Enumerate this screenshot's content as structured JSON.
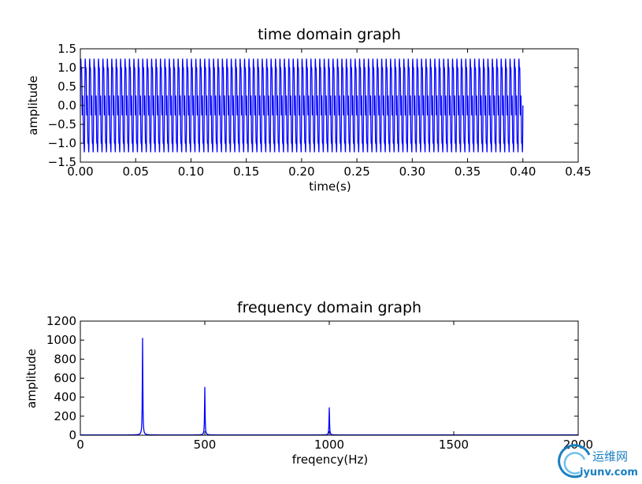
{
  "chart_data": [
    {
      "type": "line",
      "title": "time domain graph",
      "xlabel": "time(s)",
      "ylabel": "amplitude",
      "xlim": [
        0.0,
        0.45
      ],
      "ylim": [
        -1.5,
        1.5
      ],
      "xticks": [
        "0.00",
        "0.05",
        "0.10",
        "0.15",
        "0.20",
        "0.25",
        "0.30",
        "0.35",
        "0.40",
        "0.45"
      ],
      "yticks": [
        "−1.5",
        "−1.0",
        "−0.5",
        "0.0",
        "0.5",
        "1.0",
        "1.5"
      ],
      "xtick_values": [
        0.0,
        0.05,
        0.1,
        0.15,
        0.2,
        0.25,
        0.3,
        0.35,
        0.4,
        0.45
      ],
      "ytick_values": [
        -1.5,
        -1.0,
        -0.5,
        0.0,
        0.5,
        1.0,
        1.5
      ],
      "series": [
        {
          "signal": "sum of sinusoids",
          "components": [
            {
              "frequency_hz": 250,
              "amplitude": 1.0
            },
            {
              "frequency_hz": 500,
              "amplitude": 0.5
            },
            {
              "frequency_hz": 1000,
              "amplitude": 0.3
            }
          ],
          "x_range": [
            0.0,
            0.4
          ],
          "y_range": [
            -1.25,
            1.25
          ],
          "color": "#0000ff"
        }
      ],
      "grid": false
    },
    {
      "type": "line",
      "title": "frequency domain graph",
      "xlabel": "freqency(Hz)",
      "ylabel": "amplitude",
      "xlim": [
        0,
        2000
      ],
      "ylim": [
        0,
        1200
      ],
      "xticks": [
        "0",
        "500",
        "1000",
        "1500",
        "2000"
      ],
      "yticks": [
        "0",
        "200",
        "400",
        "600",
        "800",
        "1000",
        "1200"
      ],
      "xtick_values": [
        0,
        500,
        1000,
        1500,
        2000
      ],
      "ytick_values": [
        0,
        200,
        400,
        600,
        800,
        1000,
        1200
      ],
      "series": [
        {
          "peaks": [
            {
              "x": 250,
              "y": 1020
            },
            {
              "x": 500,
              "y": 505
            },
            {
              "x": 1000,
              "y": 290
            }
          ],
          "baseline": 3,
          "color": "#0000ff"
        }
      ],
      "grid": false
    }
  ],
  "watermark": {
    "cn_text": "运维网",
    "en_text": "iyunv.com",
    "color": "#1a7fc1"
  }
}
